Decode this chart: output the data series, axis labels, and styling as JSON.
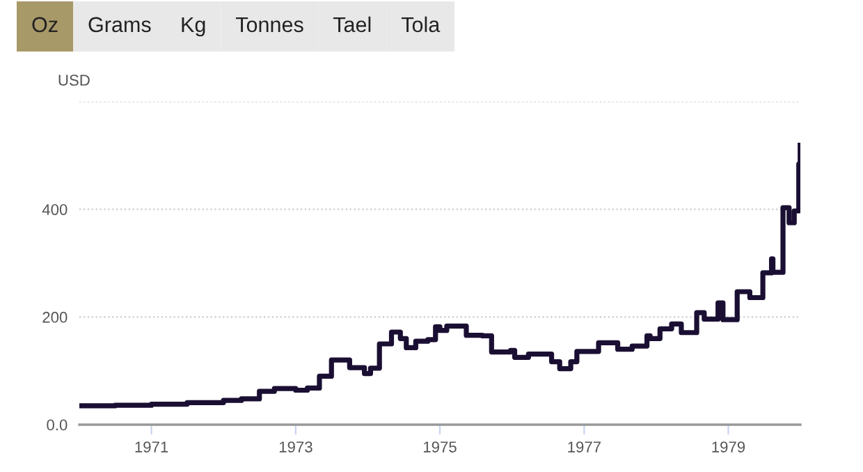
{
  "chart_data": {
    "type": "step",
    "ylabel": "USD",
    "annotations": [
      "Oz",
      "Grams",
      "Kg",
      "Tonnes",
      "Tael",
      "Tola"
    ],
    "x": [
      "1970-01-01",
      "1970-07-01",
      "1971-01-01",
      "1971-07-01",
      "1972-01-01",
      "1972-04-01",
      "1972-07-01",
      "1972-09-15",
      "1973-01-01",
      "1973-03-01",
      "1973-05-01",
      "1973-07-01",
      "1973-09-01",
      "1973-10-01",
      "1973-12-15",
      "1974-01-15",
      "1974-03-01",
      "1974-05-01",
      "1974-06-15",
      "1974-07-15",
      "1974-09-01",
      "1974-11-01",
      "1974-12-10",
      "1975-01-01",
      "1975-02-05",
      "1975-05-15",
      "1975-08-05",
      "1975-09-20",
      "1975-12-25",
      "1976-01-15",
      "1976-03-25",
      "1976-07-20",
      "1976-08-30",
      "1976-10-25",
      "1976-11-25",
      "1977-03-15",
      "1977-06-20",
      "1977-09-01",
      "1977-11-15",
      "1977-12-01",
      "1978-01-20",
      "1978-03-20",
      "1978-05-08",
      "1978-07-25",
      "1978-09-01",
      "1978-11-10",
      "1978-12-05",
      "1979-02-15",
      "1979-04-20",
      "1979-06-25",
      "1979-08-08",
      "1979-08-15",
      "1979-10-05",
      "1979-11-05",
      "1979-12-01",
      "1979-12-24",
      "1979-12-31"
    ],
    "series": [
      {
        "color": "#1a0f33",
        "values": [
          35,
          36,
          38,
          41,
          45,
          48,
          62,
          67,
          64,
          68,
          90,
          120,
          120,
          106,
          95,
          105,
          150,
          172,
          160,
          143,
          155,
          158,
          182,
          175,
          183,
          166,
          165,
          135,
          138,
          125,
          131,
          117,
          104,
          117,
          136,
          152,
          140,
          146,
          165,
          160,
          178,
          187,
          171,
          208,
          196,
          226,
          195,
          247,
          236,
          282,
          308,
          283,
          403,
          375,
          397,
          484,
          519
        ]
      }
    ],
    "xlim": [
      "1970-01-01",
      "1980-01-01"
    ],
    "xticks": [
      {
        "value": "1971-01-01",
        "label": "1971"
      },
      {
        "value": "1973-01-01",
        "label": "1973"
      },
      {
        "value": "1975-01-01",
        "label": "1975"
      },
      {
        "value": "1977-01-01",
        "label": "1977"
      },
      {
        "value": "1979-01-01",
        "label": "1979"
      }
    ],
    "ylim": [
      0,
      600
    ],
    "yticks": [
      {
        "value": 0,
        "label": "0.0"
      },
      200,
      400,
      {
        "value": 600,
        "label": null
      }
    ],
    "grid": "y",
    "line_style": "solid",
    "marker": "none"
  }
}
